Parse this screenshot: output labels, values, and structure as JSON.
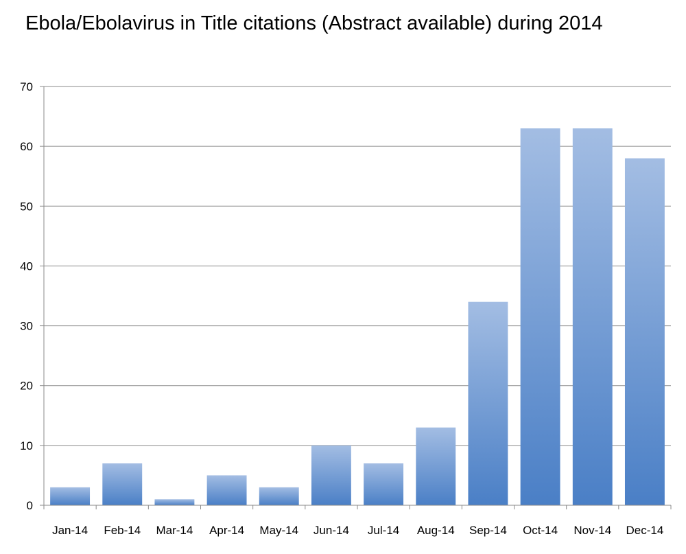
{
  "chart_data": {
    "type": "bar",
    "title": "Ebola/Ebolavirus in Title citations (Abstract available) during 2014",
    "xlabel": "",
    "ylabel": "",
    "categories": [
      "Jan-14",
      "Feb-14",
      "Mar-14",
      "Apr-14",
      "May-14",
      "Jun-14",
      "Jul-14",
      "Aug-14",
      "Sep-14",
      "Oct-14",
      "Nov-14",
      "Dec-14"
    ],
    "values": [
      3,
      7,
      1,
      5,
      3,
      10,
      7,
      13,
      34,
      63,
      63,
      58
    ],
    "ylim": [
      0,
      70
    ],
    "yticks": [
      0,
      10,
      20,
      30,
      40,
      50,
      60,
      70
    ],
    "grid": "horizontal",
    "legend": "none",
    "colors": {
      "bar_top": "#a3bde3",
      "bar_bottom": "#4a7fc6",
      "grid": "#8a8a8a",
      "axis": "#8a8a8a"
    }
  }
}
